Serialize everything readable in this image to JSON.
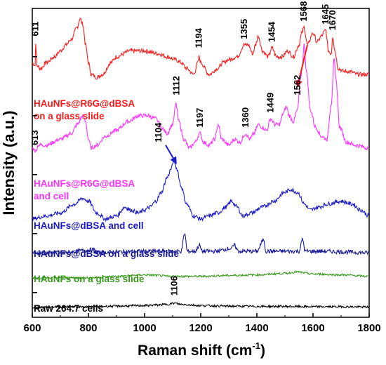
{
  "chart_data": {
    "type": "line",
    "xlabel": "Raman shift (cm",
    "xlabel_sup": "-1",
    "xlabel_close": ")",
    "ylabel": "Intensity (a.u.)",
    "xlim": [
      600,
      1800
    ],
    "xticks": [
      "600",
      "800",
      "1000",
      "1200",
      "1400",
      "1600",
      "1800"
    ],
    "ylim": [
      0,
      100
    ],
    "series": [
      {
        "label_lines": [
          "HAuNFs@R6G@dBSA",
          "on a glass slide"
        ],
        "color": "#ff1a1a",
        "points": [
          [
            600,
            84
          ],
          [
            610,
            83
          ],
          [
            612,
            91
          ],
          [
            616,
            83
          ],
          [
            630,
            82
          ],
          [
            650,
            84
          ],
          [
            680,
            86
          ],
          [
            700,
            88
          ],
          [
            720,
            90
          ],
          [
            740,
            92
          ],
          [
            760,
            96
          ],
          [
            770,
            99
          ],
          [
            780,
            97
          ],
          [
            790,
            90
          ],
          [
            800,
            84
          ],
          [
            810,
            80
          ],
          [
            830,
            79
          ],
          [
            850,
            80
          ],
          [
            880,
            84
          ],
          [
            900,
            86
          ],
          [
            950,
            88
          ],
          [
            1000,
            88
          ],
          [
            1050,
            87
          ],
          [
            1080,
            86
          ],
          [
            1110,
            85
          ],
          [
            1130,
            84
          ],
          [
            1150,
            82
          ],
          [
            1175,
            80
          ],
          [
            1190,
            84
          ],
          [
            1194,
            86
          ],
          [
            1200,
            84
          ],
          [
            1230,
            80
          ],
          [
            1260,
            82
          ],
          [
            1280,
            84
          ],
          [
            1300,
            85
          ],
          [
            1330,
            86
          ],
          [
            1355,
            90
          ],
          [
            1370,
            90
          ],
          [
            1385,
            87
          ],
          [
            1395,
            90
          ],
          [
            1405,
            93
          ],
          [
            1420,
            88
          ],
          [
            1440,
            86
          ],
          [
            1454,
            89
          ],
          [
            1470,
            86
          ],
          [
            1490,
            86
          ],
          [
            1510,
            88
          ],
          [
            1530,
            86
          ],
          [
            1550,
            90
          ],
          [
            1560,
            94
          ],
          [
            1568,
            96
          ],
          [
            1580,
            90
          ],
          [
            1600,
            94
          ],
          [
            1615,
            91
          ],
          [
            1630,
            93
          ],
          [
            1645,
            95
          ],
          [
            1655,
            88
          ],
          [
            1665,
            87
          ],
          [
            1670,
            93
          ],
          [
            1678,
            88
          ],
          [
            1690,
            82
          ],
          [
            1710,
            81
          ],
          [
            1730,
            81
          ],
          [
            1760,
            80
          ],
          [
            1800,
            80
          ]
        ]
      },
      {
        "label_lines": [
          "HAuNFs@R6G@dBSA",
          "and cell"
        ],
        "color": "#ff33ff",
        "points": [
          [
            600,
            55
          ],
          [
            613,
            54
          ],
          [
            620,
            56
          ],
          [
            650,
            56
          ],
          [
            700,
            58
          ],
          [
            740,
            60
          ],
          [
            760,
            63
          ],
          [
            780,
            66
          ],
          [
            790,
            64
          ],
          [
            800,
            58
          ],
          [
            810,
            55
          ],
          [
            830,
            56
          ],
          [
            860,
            59
          ],
          [
            900,
            61
          ],
          [
            940,
            64
          ],
          [
            980,
            66
          ],
          [
            1010,
            66
          ],
          [
            1040,
            65
          ],
          [
            1060,
            62
          ],
          [
            1080,
            60
          ],
          [
            1100,
            63
          ],
          [
            1112,
            70
          ],
          [
            1122,
            64
          ],
          [
            1140,
            58
          ],
          [
            1160,
            55
          ],
          [
            1180,
            57
          ],
          [
            1197,
            60
          ],
          [
            1210,
            57
          ],
          [
            1230,
            56
          ],
          [
            1250,
            58
          ],
          [
            1262,
            63
          ],
          [
            1275,
            58
          ],
          [
            1300,
            56
          ],
          [
            1320,
            58
          ],
          [
            1340,
            57
          ],
          [
            1360,
            60
          ],
          [
            1375,
            58
          ],
          [
            1390,
            60
          ],
          [
            1405,
            63
          ],
          [
            1420,
            62
          ],
          [
            1435,
            61
          ],
          [
            1449,
            65
          ],
          [
            1465,
            63
          ],
          [
            1480,
            63
          ],
          [
            1495,
            67
          ],
          [
            1505,
            69
          ],
          [
            1515,
            66
          ],
          [
            1530,
            64
          ],
          [
            1545,
            68
          ],
          [
            1555,
            78
          ],
          [
            1562,
            83
          ],
          [
            1568,
            90
          ],
          [
            1578,
            80
          ],
          [
            1590,
            68
          ],
          [
            1610,
            62
          ],
          [
            1630,
            59
          ],
          [
            1650,
            58
          ],
          [
            1665,
            70
          ],
          [
            1675,
            85
          ],
          [
            1682,
            78
          ],
          [
            1695,
            62
          ],
          [
            1720,
            57
          ],
          [
            1750,
            56
          ],
          [
            1800,
            55
          ]
        ]
      },
      {
        "label_lines": [
          "HAuNFs@dBSA and cell"
        ],
        "color": "#1a1acc",
        "points": [
          [
            600,
            31
          ],
          [
            650,
            32
          ],
          [
            700,
            33
          ],
          [
            750,
            36
          ],
          [
            780,
            38
          ],
          [
            800,
            37
          ],
          [
            830,
            33
          ],
          [
            860,
            31
          ],
          [
            900,
            32
          ],
          [
            930,
            35
          ],
          [
            950,
            34
          ],
          [
            980,
            33
          ],
          [
            1000,
            34
          ],
          [
            1020,
            35
          ],
          [
            1040,
            37
          ],
          [
            1060,
            40
          ],
          [
            1080,
            45
          ],
          [
            1095,
            48
          ],
          [
            1104,
            51
          ],
          [
            1115,
            48
          ],
          [
            1130,
            42
          ],
          [
            1150,
            36
          ],
          [
            1175,
            32
          ],
          [
            1200,
            31
          ],
          [
            1230,
            32
          ],
          [
            1260,
            33
          ],
          [
            1290,
            35
          ],
          [
            1310,
            37
          ],
          [
            1330,
            35
          ],
          [
            1350,
            32
          ],
          [
            1380,
            33
          ],
          [
            1420,
            35
          ],
          [
            1460,
            37
          ],
          [
            1500,
            40
          ],
          [
            1520,
            41
          ],
          [
            1545,
            40
          ],
          [
            1570,
            36
          ],
          [
            1590,
            34
          ],
          [
            1620,
            35
          ],
          [
            1650,
            36
          ],
          [
            1700,
            37
          ],
          [
            1740,
            36
          ],
          [
            1770,
            34
          ],
          [
            1800,
            32
          ]
        ]
      },
      {
        "label_lines": [
          "HAuNFs@dBSA on a glass slide"
        ],
        "color": "#1a1a99",
        "points": [
          [
            600,
            19.5
          ],
          [
            700,
            19.5
          ],
          [
            820,
            20.5
          ],
          [
            830,
            19.5
          ],
          [
            900,
            19.8
          ],
          [
            1000,
            20
          ],
          [
            1100,
            20
          ],
          [
            1130,
            20
          ],
          [
            1143,
            26
          ],
          [
            1152,
            20
          ],
          [
            1180,
            20
          ],
          [
            1195,
            22
          ],
          [
            1205,
            20
          ],
          [
            1250,
            20
          ],
          [
            1310,
            21
          ],
          [
            1320,
            22
          ],
          [
            1335,
            20
          ],
          [
            1400,
            20
          ],
          [
            1425,
            24
          ],
          [
            1432,
            20
          ],
          [
            1500,
            20
          ],
          [
            1550,
            20
          ],
          [
            1563,
            24
          ],
          [
            1572,
            20
          ],
          [
            1650,
            20
          ],
          [
            1700,
            19.8
          ],
          [
            1800,
            19.5
          ]
        ]
      },
      {
        "label_lines": [
          "HAuNFs on a glass slide"
        ],
        "color": "#3a9a20",
        "points": [
          [
            600,
            11
          ],
          [
            700,
            11
          ],
          [
            800,
            11
          ],
          [
            900,
            11.5
          ],
          [
            1000,
            12
          ],
          [
            1100,
            11.5
          ],
          [
            1200,
            11.5
          ],
          [
            1300,
            11.8
          ],
          [
            1400,
            12
          ],
          [
            1500,
            12.5
          ],
          [
            1540,
            13
          ],
          [
            1600,
            12.3
          ],
          [
            1700,
            12
          ],
          [
            1800,
            11.5
          ]
        ]
      },
      {
        "label_lines": [
          "Raw 264.7 cells"
        ],
        "color": "#000000",
        "points": [
          [
            600,
            1
          ],
          [
            700,
            1.2
          ],
          [
            800,
            1.2
          ],
          [
            900,
            1.4
          ],
          [
            1000,
            1.6
          ],
          [
            1050,
            1.8
          ],
          [
            1080,
            2
          ],
          [
            1106,
            2.4
          ],
          [
            1130,
            2
          ],
          [
            1200,
            1.6
          ],
          [
            1300,
            1.4
          ],
          [
            1400,
            1.3
          ],
          [
            1500,
            1.3
          ],
          [
            1600,
            1.2
          ],
          [
            1700,
            1.2
          ],
          [
            1800,
            1.1
          ]
        ]
      }
    ],
    "peak_labels": [
      {
        "text": "611",
        "x": 611,
        "y": 92,
        "color": "#000000"
      },
      {
        "text": "1194",
        "x": 1194,
        "y": 88,
        "color": "#000000"
      },
      {
        "text": "1355",
        "x": 1355,
        "y": 91,
        "color": "#000000"
      },
      {
        "text": "1454",
        "x": 1454,
        "y": 90,
        "color": "#000000"
      },
      {
        "text": "1568",
        "x": 1568,
        "y": 97,
        "color": "#000000"
      },
      {
        "text": "1645",
        "x": 1645,
        "y": 96,
        "color": "#000000"
      },
      {
        "text": "1670",
        "x": 1670,
        "y": 94,
        "color": "#000000"
      },
      {
        "text": "1562",
        "x": 1545,
        "y": 72,
        "color": "#000000"
      },
      {
        "text": "613",
        "x": 610,
        "y": 55,
        "color": "#000000"
      },
      {
        "text": "1112",
        "x": 1114,
        "y": 72,
        "color": "#000000"
      },
      {
        "text": "1197",
        "x": 1197,
        "y": 61,
        "color": "#000000"
      },
      {
        "text": "1360",
        "x": 1360,
        "y": 61,
        "color": "#000000"
      },
      {
        "text": "1449",
        "x": 1449,
        "y": 66,
        "color": "#000000"
      },
      {
        "text": "1104",
        "x": 1050,
        "y": 56,
        "color": "#000000"
      },
      {
        "text": "1106",
        "x": 1106,
        "y": 4,
        "color": "#000000"
      }
    ]
  }
}
